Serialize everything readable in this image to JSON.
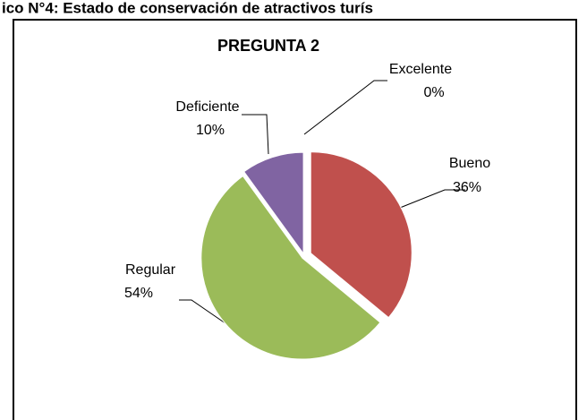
{
  "header": "ico N°4: Estado de conservación de atractivos turís",
  "chart_data": {
    "type": "pie",
    "title": "PREGUNTA 2",
    "categories": [
      "Excelente",
      "Bueno",
      "Regular",
      "Deficiente"
    ],
    "values": [
      0,
      36,
      54,
      10
    ],
    "value_labels": [
      "0%",
      "36%",
      "54%",
      "10%"
    ],
    "colors": [
      "#4f81bd",
      "#c0504d",
      "#9bbb59",
      "#8064a2"
    ]
  }
}
